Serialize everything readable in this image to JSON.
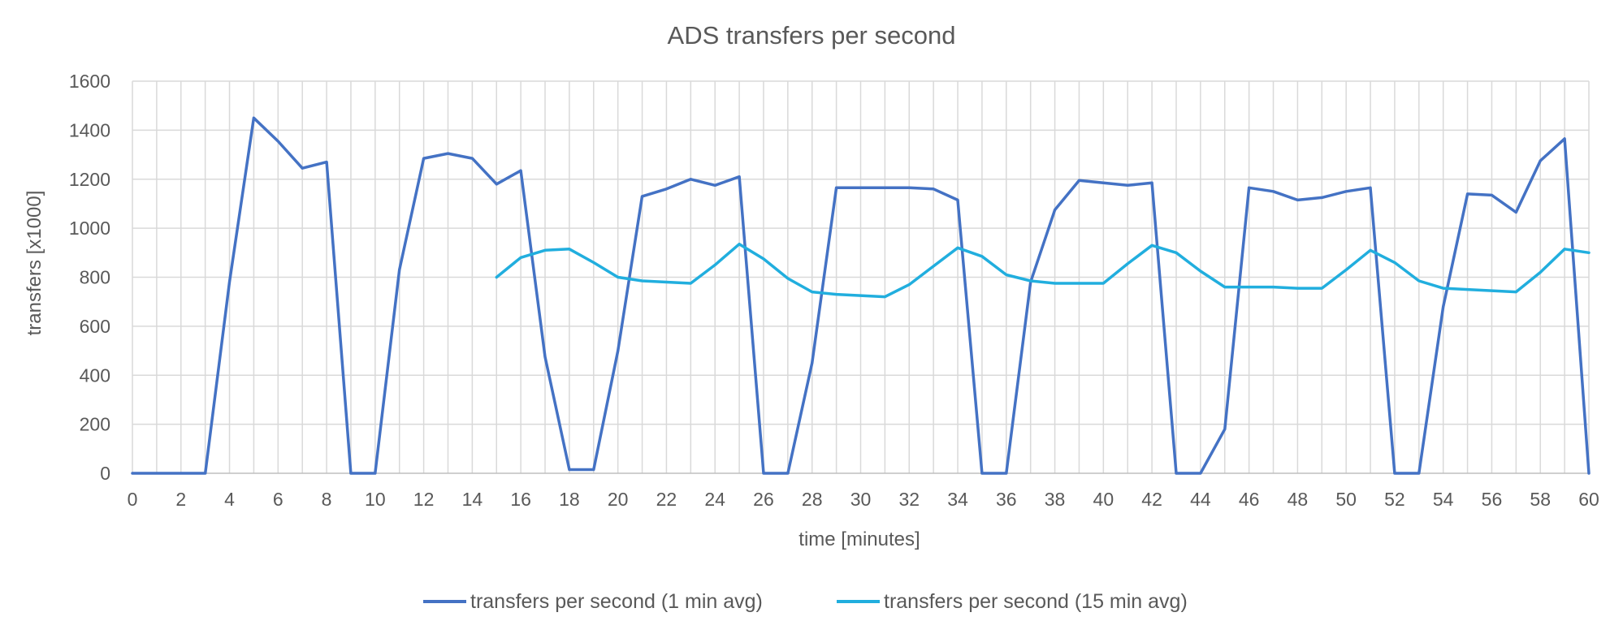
{
  "chart_data": {
    "type": "line",
    "title": "ADS transfers per second",
    "xlabel": "time [minutes]",
    "ylabel": "transfers [x1000]",
    "xlim": [
      0,
      60
    ],
    "ylim": [
      0,
      1600
    ],
    "x_ticks": [
      0,
      2,
      4,
      6,
      8,
      10,
      12,
      14,
      16,
      18,
      20,
      22,
      24,
      26,
      28,
      30,
      32,
      34,
      36,
      38,
      40,
      42,
      44,
      46,
      48,
      50,
      52,
      54,
      56,
      58,
      60
    ],
    "y_ticks": [
      0,
      200,
      400,
      600,
      800,
      1000,
      1200,
      1400,
      1600
    ],
    "grid": true,
    "legend_position": "bottom",
    "series": [
      {
        "name": "transfers per second (1 min avg)",
        "color": "#4472c4",
        "x": [
          0,
          1,
          2,
          3,
          4,
          5,
          6,
          7,
          8,
          9,
          10,
          11,
          12,
          13,
          14,
          15,
          16,
          17,
          18,
          19,
          20,
          21,
          22,
          23,
          24,
          25,
          26,
          27,
          28,
          29,
          30,
          31,
          32,
          33,
          34,
          35,
          36,
          37,
          38,
          39,
          40,
          41,
          42,
          43,
          44,
          45,
          46,
          47,
          48,
          49,
          50,
          51,
          52,
          53,
          54,
          55,
          56,
          57,
          58,
          59,
          60
        ],
        "y": [
          0,
          0,
          0,
          0,
          780,
          1450,
          1355,
          1245,
          1270,
          0,
          0,
          830,
          1285,
          1305,
          1285,
          1180,
          1235,
          475,
          15,
          15,
          500,
          1130,
          1160,
          1200,
          1175,
          1210,
          0,
          0,
          450,
          1165,
          1165,
          1165,
          1165,
          1160,
          1115,
          0,
          0,
          780,
          1075,
          1195,
          1185,
          1175,
          1185,
          0,
          0,
          180,
          1165,
          1150,
          1115,
          1125,
          1150,
          1165,
          0,
          0,
          680,
          1140,
          1135,
          1065,
          1275,
          1365,
          0
        ]
      },
      {
        "name": "transfers per second (15 min avg)",
        "color": "#21aede",
        "x": [
          15,
          16,
          17,
          18,
          19,
          20,
          21,
          22,
          23,
          24,
          25,
          26,
          27,
          28,
          29,
          30,
          31,
          32,
          33,
          34,
          35,
          36,
          37,
          38,
          39,
          40,
          41,
          42,
          43,
          44,
          45,
          46,
          47,
          48,
          49,
          50,
          51,
          52,
          53,
          54,
          55,
          56,
          57,
          58,
          59,
          60
        ],
        "y": [
          800,
          880,
          910,
          915,
          860,
          800,
          785,
          780,
          775,
          850,
          935,
          875,
          795,
          740,
          730,
          725,
          720,
          770,
          845,
          920,
          885,
          810,
          785,
          775,
          775,
          775,
          855,
          930,
          900,
          825,
          760,
          760,
          760,
          755,
          755,
          830,
          910,
          860,
          785,
          755,
          750,
          745,
          740,
          820,
          915,
          900
        ]
      }
    ]
  }
}
